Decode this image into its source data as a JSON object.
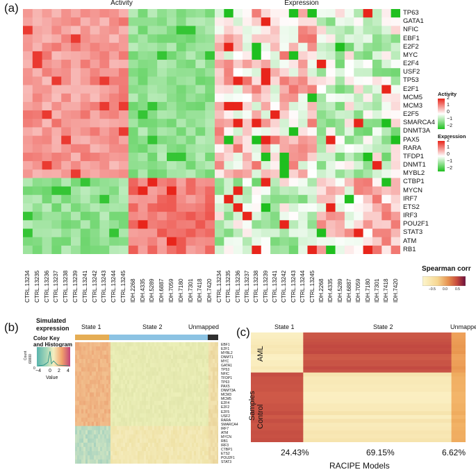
{
  "panel_a": {
    "label": "(a)",
    "activity_title": "Activity",
    "expression_title": "Expression",
    "genes": [
      "TP63",
      "GATA1",
      "NFIC",
      "EBF1",
      "E2F2",
      "MYC",
      "E2F4",
      "USF2",
      "TP53",
      "E2F1",
      "MCM5",
      "MCM3",
      "E2F5",
      "SMARCA4",
      "DNMT3A",
      "PAX5",
      "RARA",
      "TFDP1",
      "DNMT1",
      "MYBL2",
      "CTBP1",
      "MYCN",
      "IRF7",
      "ETS2",
      "IRF3",
      "POU2F1",
      "STAT3",
      "ATM",
      "RB1"
    ],
    "samples": [
      "CTRL.13234",
      "CTRL.13235",
      "CTRL.13236",
      "CTRL.13237",
      "CTRL.13238",
      "CTRL.13239",
      "CTRL.13241",
      "CTRL.13242",
      "CTRL.13243",
      "CTRL.13244",
      "CTRL.13245",
      "IDH.2268",
      "IDH.4335",
      "IDH.5289",
      "IDH.6887",
      "IDH.7059",
      "IDH.7180",
      "IDH.7301",
      "IDH.7418",
      "IDH.7420"
    ],
    "activity_key": {
      "title": "Activity",
      "ticks": [
        "2",
        "1",
        "0",
        "−1",
        "−2"
      ]
    },
    "expression_key": {
      "title": "Expression",
      "ticks": [
        "2",
        "1",
        "0",
        "−1",
        "−2"
      ]
    },
    "colors": {
      "high": "#e8251b",
      "mid": "#ffffff",
      "low": "#1fbf1f"
    }
  },
  "panel_b": {
    "label": "(b)",
    "title_line1": "Simulated",
    "title_line2": "expression",
    "key_title_line1": "Color Key",
    "key_title_line2": "and Histogram",
    "count_label": "Count",
    "count_tick": "60000",
    "count_zero": "0",
    "value_label": "Value",
    "value_ticks": [
      "−4",
      "0",
      "2",
      "4"
    ],
    "state1": "State 1",
    "state2": "State 2",
    "unmapped": "Unmapped",
    "genes": [
      "EBF1",
      "E2F1",
      "MYBL2",
      "DNMT1",
      "MYC",
      "GATA1",
      "TP53",
      "NFIC",
      "TFDP1",
      "TP63",
      "PAX5",
      "DNMT3A",
      "MCM3",
      "MCM5",
      "E2F4",
      "E2F2",
      "E2F5",
      "USF2",
      "RARA",
      "SMARCA4",
      "IRF7",
      "ATM",
      "MYCN",
      "RB1",
      "IRF3",
      "CTBP1",
      "ETS2",
      "POU2F1",
      "STAT3"
    ]
  },
  "panel_c": {
    "label": "(c)",
    "spearman_title": "Spearman corr",
    "spearman_ticks": [
      "−0.5",
      "0.0",
      "0.5"
    ],
    "state1": "State 1",
    "state2": "State 2",
    "unmapped": "Unmapped",
    "pct1": "24.43%",
    "pct2": "69.15%",
    "pct3": "6.62%",
    "ylabel": "Samples",
    "row_aml": "AML",
    "row_control": "Control",
    "xlabel": "RACIPE Models",
    "state_fractions": [
      0.2443,
      0.6915,
      0.0662
    ]
  }
}
